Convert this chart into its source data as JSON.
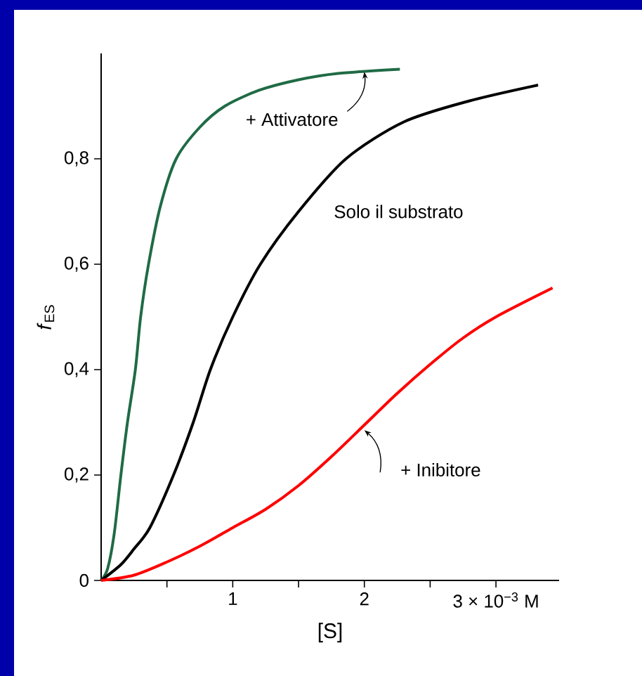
{
  "chart_data": {
    "type": "line",
    "xlabel": "[S]",
    "ylabel": "*f*$_{ES}$",
    "xlim": [
      0,
      3.48
    ],
    "ylim": [
      0,
      1.0
    ],
    "xticks": [
      {
        "value": 0.5,
        "label": null
      },
      {
        "value": 1,
        "label": "1"
      },
      {
        "value": 1.5,
        "label": null
      },
      {
        "value": 2,
        "label": "2"
      },
      {
        "value": 2.5,
        "label": null
      },
      {
        "value": 3,
        "label": "3 × 10$^{−3}$ M"
      }
    ],
    "yticks": [
      {
        "value": 0,
        "label": "0"
      },
      {
        "value": 0.2,
        "label": "0,2"
      },
      {
        "value": 0.4,
        "label": "0,4"
      },
      {
        "value": 0.6,
        "label": "0,6"
      },
      {
        "value": 0.8,
        "label": "0,8"
      }
    ],
    "grid": false,
    "legend": false,
    "marker": "none",
    "line_style": "solid",
    "series": [
      {
        "name": "+ Attivatore",
        "color": "#1f6b45",
        "x": [
          0,
          0.05,
          0.1,
          0.15,
          0.2,
          0.26,
          0.3,
          0.36,
          0.45,
          0.57,
          0.75,
          0.94,
          1.2,
          1.5,
          1.8,
          2.27
        ],
        "values": [
          0,
          0.023,
          0.09,
          0.2,
          0.3,
          0.4,
          0.5,
          0.6,
          0.71,
          0.8,
          0.86,
          0.9,
          0.93,
          0.95,
          0.962,
          0.97
        ]
      },
      {
        "name": "Solo il substrato",
        "color": "#000000",
        "x": [
          0,
          0.15,
          0.25,
          0.37,
          0.55,
          0.7,
          0.83,
          1.0,
          1.21,
          1.5,
          1.86,
          2.3,
          2.8,
          3.32
        ],
        "values": [
          0,
          0.03,
          0.06,
          0.1,
          0.2,
          0.3,
          0.4,
          0.5,
          0.6,
          0.7,
          0.8,
          0.87,
          0.91,
          0.94
        ]
      },
      {
        "name": "+ Inibitore",
        "color": "#ff0000",
        "x": [
          0,
          0.25,
          0.5,
          0.75,
          1,
          1.25,
          1.5,
          1.75,
          2,
          2.25,
          2.5,
          2.75,
          3,
          3.43
        ],
        "values": [
          0,
          0.01,
          0.035,
          0.065,
          0.1,
          0.135,
          0.18,
          0.235,
          0.295,
          0.355,
          0.41,
          0.46,
          0.5,
          0.555
        ]
      }
    ]
  }
}
